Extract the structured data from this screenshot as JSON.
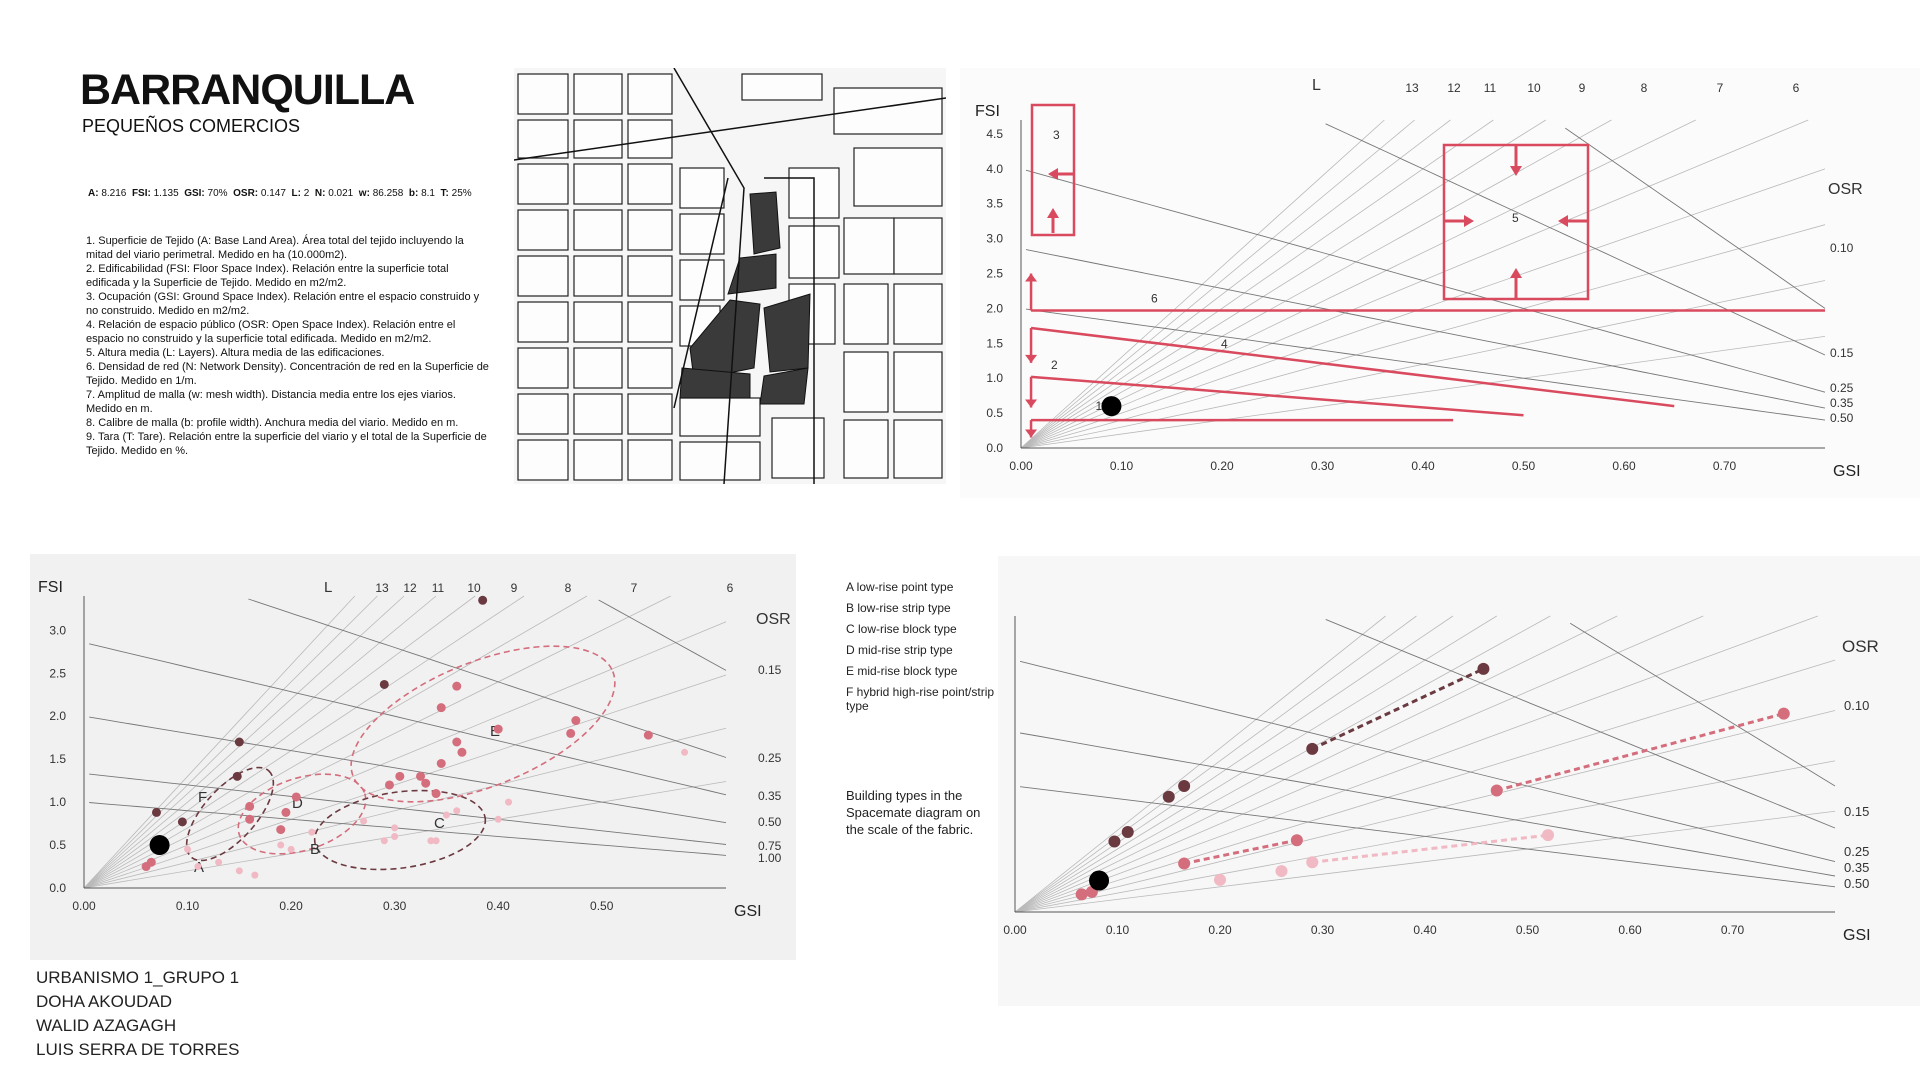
{
  "header": {
    "title": "BARRANQUILLA",
    "subtitle": "PEQUEÑOS COMERCIOS"
  },
  "metrics": [
    {
      "label": "A:",
      "value": "8.216"
    },
    {
      "label": "FSI:",
      "value": "1.135"
    },
    {
      "label": "GSI:",
      "value": "70%"
    },
    {
      "label": "OSR:",
      "value": "0.147"
    },
    {
      "label": "L:",
      "value": "2"
    },
    {
      "label": "N:",
      "value": "0.021"
    },
    {
      "label": "w:",
      "value": "86.258"
    },
    {
      "label": "b:",
      "value": "8.1"
    },
    {
      "label": "T:",
      "value": "25%"
    }
  ],
  "notes": [
    "1. Superficie de Tejido (A: Base Land Area). Área total del tejido incluyendo la mitad del viario perimetral. Medido en ha (10.000m2).",
    "2. Edificabilidad (FSI: Floor Space Index). Relación entre la superficie total edificada y la Superficie de Tejido. Medido en m2/m2.",
    "3. Ocupación (GSI: Ground Space Index). Relación entre el espacio construido y no construido. Medido en m2/m2.",
    "4. Relación de espacio público (OSR: Open Space Index). Relación entre el espacio no construido y la superficie total edificada. Medido en m2/m2.",
    "5. Altura media (L: Layers). Altura media de las edificaciones.",
    "6. Densidad de red (N: Network Density). Concentración de red en la Superficie de Tejido. Medido en 1/m.",
    "7. Amplitud de malla (w: mesh width). Distancia media entre los ejes viarios. Medido en m.",
    "8. Calibre de malla (b: profile width). Anchura media del viario. Medido en m.",
    "9. Tara (T: Tare). Relación entre la superficie del viario y el total de la Superficie de Tejido. Medido en %."
  ],
  "legend": {
    "items": [
      "A  low-rise point type",
      "B  low-rise strip type",
      "C  low-rise block type",
      "D  mid-rise strip type",
      "E  mid-rise block type",
      "F  hybrid high-rise point/strip type"
    ],
    "note": "Building types in the Spacemate diagram on the scale of the fabric."
  },
  "credits": [
    "URBANISMO 1_GRUPO 1",
    "DOHA AKOUDAD",
    "WALID AZAGAGH",
    "LUIS SERRA DE TORRES"
  ],
  "colors": {
    "accent_red": "#d94a5e",
    "dark_brown": "#6b3a40",
    "pink": "#d46d7c",
    "light_pink": "#f0b9c3",
    "grid": "#b9b9b9",
    "black_point": "#000000"
  },
  "chart_data": [
    {
      "type": "scatter",
      "id": "spacemate-process",
      "xlabel": "GSI",
      "ylabel": "FSI",
      "xlim": [
        0,
        0.8
      ],
      "ylim": [
        0,
        4.7
      ],
      "x_ticks": [
        "0.00",
        "0.10",
        "0.20",
        "0.30",
        "0.40",
        "0.50",
        "0.60",
        "0.70"
      ],
      "y_ticks": [
        "0.0",
        "0.5",
        "1.0",
        "1.5",
        "2.0",
        "2.5",
        "3.0",
        "3.5",
        "4.0",
        "4.5"
      ],
      "L_label": "L",
      "L_values": [
        "13",
        "12",
        "11",
        "10",
        "9",
        "8",
        "7",
        "6"
      ],
      "OSR_label": "OSR",
      "OSR_values": [
        "0.10",
        "0.15",
        "0.25",
        "0.35",
        "0.50"
      ],
      "point": {
        "x": 0.09,
        "y": 0.6,
        "label": "1"
      },
      "step_labels": [
        "2",
        "3",
        "4",
        "5",
        "6"
      ],
      "annotations": [
        {
          "label": "6",
          "x0": 0.01,
          "y0": 1.97,
          "x1": 0.8,
          "y1": 1.97
        },
        {
          "label": "4",
          "x0": 0.01,
          "y0": 1.72,
          "x1": 0.65,
          "y1": 0.6
        },
        {
          "label": "2",
          "x0": 0.01,
          "y0": 1.02,
          "x1": 0.5,
          "y1": 0.47
        },
        {
          "label": "",
          "x0": 0.01,
          "y0": 0.4,
          "x1": 0.43,
          "y1": 0.4
        }
      ]
    },
    {
      "type": "scatter",
      "id": "spacemate-types-a",
      "xlabel": "GSI",
      "ylabel": "FSI",
      "xlim": [
        0,
        0.62
      ],
      "ylim": [
        0,
        3.4
      ],
      "x_ticks": [
        "0.00",
        "0.10",
        "0.20",
        "0.30",
        "0.40",
        "0.50"
      ],
      "y_ticks": [
        "0.0",
        "0.5",
        "1.0",
        "1.5",
        "2.0",
        "2.5",
        "3.0"
      ],
      "L_label": "L",
      "L_values": [
        "13",
        "12",
        "11",
        "10",
        "9",
        "8",
        "7",
        "6"
      ],
      "OSR_label": "OSR",
      "OSR_values": [
        "0.15",
        "0.25",
        "0.35",
        "0.50",
        "0.75",
        "1.00"
      ],
      "cluster_labels": [
        "A",
        "B",
        "C",
        "D",
        "E",
        "F"
      ],
      "highlight": {
        "x": 0.073,
        "y": 0.5
      },
      "series": [
        {
          "color": "dark",
          "points": [
            [
              0.385,
              3.35
            ],
            [
              0.29,
              2.37
            ],
            [
              0.15,
              1.7
            ],
            [
              0.148,
              1.3
            ],
            [
              0.07,
              0.88
            ],
            [
              0.095,
              0.77
            ]
          ]
        },
        {
          "color": "mid",
          "points": [
            [
              0.36,
              2.35
            ],
            [
              0.345,
              2.1
            ],
            [
              0.4,
              1.85
            ],
            [
              0.475,
              1.95
            ],
            [
              0.47,
              1.8
            ],
            [
              0.545,
              1.78
            ],
            [
              0.36,
              1.7
            ],
            [
              0.365,
              1.58
            ],
            [
              0.345,
              1.45
            ],
            [
              0.305,
              1.3
            ],
            [
              0.295,
              1.2
            ],
            [
              0.325,
              1.3
            ],
            [
              0.33,
              1.22
            ],
            [
              0.34,
              1.1
            ],
            [
              0.205,
              1.06
            ],
            [
              0.16,
              0.95
            ],
            [
              0.16,
              0.8
            ],
            [
              0.195,
              0.88
            ],
            [
              0.19,
              0.68
            ],
            [
              0.06,
              0.25
            ],
            [
              0.065,
              0.3
            ]
          ]
        },
        {
          "color": "light",
          "points": [
            [
              0.58,
              1.58
            ],
            [
              0.35,
              0.85
            ],
            [
              0.36,
              0.9
            ],
            [
              0.4,
              0.8
            ],
            [
              0.41,
              1.0
            ],
            [
              0.27,
              0.78
            ],
            [
              0.3,
              0.6
            ],
            [
              0.29,
              0.55
            ],
            [
              0.3,
              0.7
            ],
            [
              0.34,
              0.55
            ],
            [
              0.335,
              0.55
            ],
            [
              0.2,
              0.45
            ],
            [
              0.19,
              0.5
            ],
            [
              0.22,
              0.65
            ],
            [
              0.1,
              0.45
            ],
            [
              0.13,
              0.3
            ],
            [
              0.15,
              0.2
            ],
            [
              0.165,
              0.15
            ],
            [
              0.11,
              0.25
            ]
          ]
        }
      ]
    },
    {
      "type": "scatter",
      "id": "spacemate-types-b",
      "xlabel": "GSI",
      "ylabel": "FSI",
      "xlim": [
        0,
        0.8
      ],
      "ylim": [
        0,
        4.7
      ],
      "x_ticks": [
        "0.00",
        "0.10",
        "0.20",
        "0.30",
        "0.40",
        "0.50",
        "0.60",
        "0.70"
      ],
      "OSR_label": "OSR",
      "OSR_values": [
        "0.10",
        "0.15",
        "0.25",
        "0.35",
        "0.50"
      ],
      "highlight": {
        "x": 0.082,
        "y": 0.5
      },
      "dashed_series": [
        {
          "color": "dark",
          "points": [
            [
              0.29,
              2.59
            ],
            [
              0.457,
              3.86
            ]
          ]
        },
        {
          "color": "mid",
          "points": [
            [
              0.47,
              1.93
            ],
            [
              0.75,
              3.15
            ]
          ]
        },
        {
          "color": "mid",
          "points": [
            [
              0.165,
              0.77
            ],
            [
              0.275,
              1.14
            ]
          ]
        },
        {
          "color": "light",
          "points": [
            [
              0.29,
              0.79
            ],
            [
              0.52,
              1.22
            ]
          ]
        }
      ],
      "points": [
        {
          "x": 0.29,
          "y": 2.59,
          "c": "dark"
        },
        {
          "x": 0.457,
          "y": 3.86,
          "c": "dark"
        },
        {
          "x": 0.15,
          "y": 1.83,
          "c": "dark"
        },
        {
          "x": 0.165,
          "y": 2.0,
          "c": "dark"
        },
        {
          "x": 0.11,
          "y": 1.27,
          "c": "dark"
        },
        {
          "x": 0.097,
          "y": 1.12,
          "c": "dark"
        },
        {
          "x": 0.47,
          "y": 1.93,
          "c": "mid"
        },
        {
          "x": 0.75,
          "y": 3.15,
          "c": "mid"
        },
        {
          "x": 0.165,
          "y": 0.77,
          "c": "mid"
        },
        {
          "x": 0.275,
          "y": 1.14,
          "c": "mid"
        },
        {
          "x": 0.065,
          "y": 0.28,
          "c": "mid"
        },
        {
          "x": 0.075,
          "y": 0.32,
          "c": "mid"
        },
        {
          "x": 0.29,
          "y": 0.79,
          "c": "light"
        },
        {
          "x": 0.52,
          "y": 1.22,
          "c": "light"
        },
        {
          "x": 0.2,
          "y": 0.51,
          "c": "light"
        },
        {
          "x": 0.26,
          "y": 0.65,
          "c": "light"
        }
      ]
    }
  ]
}
